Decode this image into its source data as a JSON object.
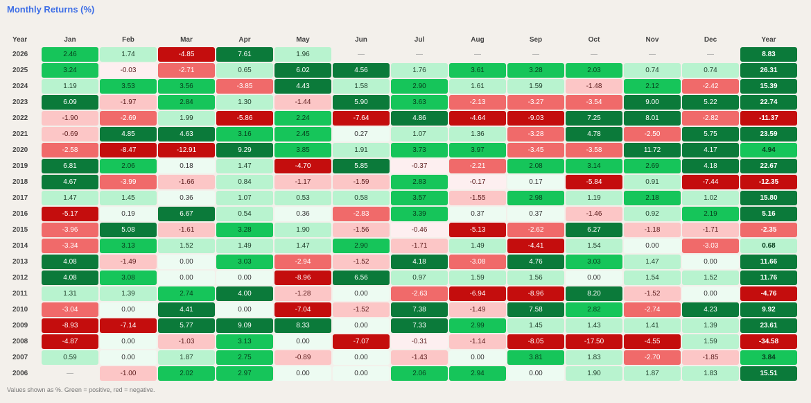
{
  "title": "Monthly Returns (%)",
  "footer": "Values shown as %. Green = positive, red = negative.",
  "header": {
    "year": "Year",
    "months": [
      "Jan",
      "Feb",
      "Mar",
      "Apr",
      "May",
      "Jun",
      "Jul",
      "Aug",
      "Sep",
      "Oct",
      "Nov",
      "Dec"
    ],
    "total": "Year"
  },
  "colors": {
    "pos_strong": "#0b7a3a",
    "pos_mid": "#16c55a",
    "pos_light": "#b8f3cf",
    "pos_faint": "#edfbf2",
    "neg_strong": "#c40d0d",
    "neg_mid": "#f06a6a",
    "neg_light": "#fcc6c6",
    "neg_faint": "#fdeff0",
    "empty": "#f3f0eb"
  },
  "rows": [
    {
      "year": "2026",
      "m": [
        "2.46",
        "1.74",
        "-4.85",
        "7.61",
        "1.96",
        "—",
        "—",
        "—",
        "—",
        "—",
        "—",
        "—"
      ],
      "total": "8.83"
    },
    {
      "year": "2025",
      "m": [
        "3.24",
        "-0.03",
        "-2.71",
        "0.65",
        "6.02",
        "4.56",
        "1.76",
        "3.61",
        "3.28",
        "2.03",
        "0.74",
        "0.74"
      ],
      "total": "26.31"
    },
    {
      "year": "2024",
      "m": [
        "1.19",
        "3.53",
        "3.56",
        "-3.85",
        "4.43",
        "1.58",
        "2.90",
        "1.61",
        "1.59",
        "-1.48",
        "2.12",
        "-2.42"
      ],
      "total": "15.39"
    },
    {
      "year": "2023",
      "m": [
        "6.09",
        "-1.97",
        "2.84",
        "1.30",
        "-1.44",
        "5.90",
        "3.63",
        "-2.13",
        "-3.27",
        "-3.54",
        "9.00",
        "5.22"
      ],
      "total": "22.74"
    },
    {
      "year": "2022",
      "m": [
        "-1.90",
        "-2.69",
        "1.99",
        "-5.86",
        "2.24",
        "-7.64",
        "4.86",
        "-4.64",
        "-9.03",
        "7.25",
        "8.01",
        "-2.82"
      ],
      "total": "-11.37"
    },
    {
      "year": "2021",
      "m": [
        "-0.69",
        "4.85",
        "4.63",
        "3.16",
        "2.45",
        "0.27",
        "1.07",
        "1.36",
        "-3.28",
        "4.78",
        "-2.50",
        "5.75"
      ],
      "total": "23.59"
    },
    {
      "year": "2020",
      "m": [
        "-2.58",
        "-8.47",
        "-12.91",
        "9.29",
        "3.85",
        "1.91",
        "3.73",
        "3.97",
        "-3.45",
        "-3.58",
        "11.72",
        "4.17"
      ],
      "total": "4.94"
    },
    {
      "year": "2019",
      "m": [
        "6.81",
        "2.06",
        "0.18",
        "1.47",
        "-4.70",
        "5.85",
        "-0.37",
        "-2.21",
        "2.08",
        "3.14",
        "2.69",
        "4.18"
      ],
      "total": "22.67"
    },
    {
      "year": "2018",
      "m": [
        "4.67",
        "-3.99",
        "-1.66",
        "0.84",
        "-1.17",
        "-1.59",
        "2.83",
        "-0.17",
        "0.17",
        "-5.84",
        "0.91",
        "-7.44"
      ],
      "total": "-12.35"
    },
    {
      "year": "2017",
      "m": [
        "1.47",
        "1.45",
        "0.36",
        "1.07",
        "0.53",
        "0.58",
        "3.57",
        "-1.55",
        "2.98",
        "1.19",
        "2.18",
        "1.02"
      ],
      "total": "15.80"
    },
    {
      "year": "2016",
      "m": [
        "-5.17",
        "0.19",
        "6.67",
        "0.54",
        "0.36",
        "-2.83",
        "3.39",
        "0.37",
        "0.37",
        "-1.46",
        "0.92",
        "2.19"
      ],
      "total": "5.16"
    },
    {
      "year": "2015",
      "m": [
        "-3.96",
        "5.08",
        "-1.61",
        "3.28",
        "1.90",
        "-1.56",
        "-0.46",
        "-5.13",
        "-2.62",
        "6.27",
        "-1.18",
        "-1.71"
      ],
      "total": "-2.35"
    },
    {
      "year": "2014",
      "m": [
        "-3.34",
        "3.13",
        "1.52",
        "1.49",
        "1.47",
        "2.90",
        "-1.71",
        "1.49",
        "-4.41",
        "1.54",
        "0.00",
        "-3.03"
      ],
      "total": "0.68"
    },
    {
      "year": "2013",
      "m": [
        "4.08",
        "-1.49",
        "0.00",
        "3.03",
        "-2.94",
        "-1.52",
        "4.18",
        "-3.08",
        "4.76",
        "3.03",
        "1.47",
        "0.00"
      ],
      "total": "11.66"
    },
    {
      "year": "2012",
      "m": [
        "4.08",
        "3.08",
        "0.00",
        "0.00",
        "-8.96",
        "6.56",
        "0.97",
        "1.59",
        "1.56",
        "0.00",
        "1.54",
        "1.52"
      ],
      "total": "11.76"
    },
    {
      "year": "2011",
      "m": [
        "1.31",
        "1.39",
        "2.74",
        "4.00",
        "-1.28",
        "0.00",
        "-2.63",
        "-6.94",
        "-8.96",
        "8.20",
        "-1.52",
        "0.00"
      ],
      "total": "-4.76"
    },
    {
      "year": "2010",
      "m": [
        "-3.04",
        "0.00",
        "4.41",
        "0.00",
        "-7.04",
        "-1.52",
        "7.38",
        "-1.49",
        "7.58",
        "2.82",
        "-2.74",
        "4.23"
      ],
      "total": "9.92"
    },
    {
      "year": "2009",
      "m": [
        "-8.93",
        "-7.14",
        "5.77",
        "9.09",
        "8.33",
        "0.00",
        "7.33",
        "2.99",
        "1.45",
        "1.43",
        "1.41",
        "1.39"
      ],
      "total": "23.61"
    },
    {
      "year": "2008",
      "m": [
        "-4.87",
        "0.00",
        "-1.03",
        "3.13",
        "0.00",
        "-7.07",
        "-0.31",
        "-1.14",
        "-8.05",
        "-17.50",
        "-4.55",
        "1.59"
      ],
      "total": "-34.58"
    },
    {
      "year": "2007",
      "m": [
        "0.59",
        "0.00",
        "1.87",
        "2.75",
        "-0.89",
        "0.00",
        "-1.43",
        "0.00",
        "3.81",
        "1.83",
        "-2.70",
        "-1.85"
      ],
      "total": "3.84"
    },
    {
      "year": "2006",
      "m": [
        "—",
        "-1.00",
        "2.02",
        "2.97",
        "0.00",
        "0.00",
        "2.06",
        "2.94",
        "0.00",
        "1.90",
        "1.87",
        "1.83"
      ],
      "total": "15.51"
    }
  ]
}
